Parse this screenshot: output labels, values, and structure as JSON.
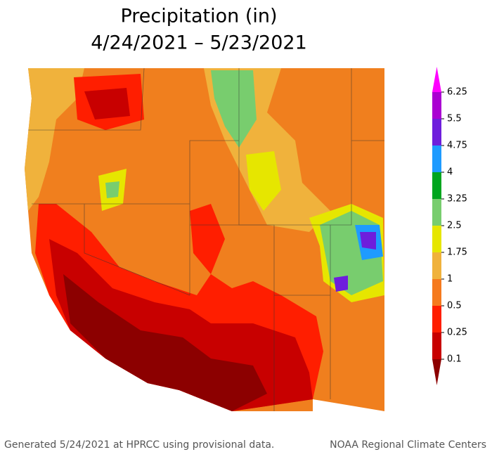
{
  "title": "Precipitation (in)",
  "subtitle": "4/24/2021 – 5/23/2021",
  "legend": {
    "levels": [
      0.1,
      0.25,
      0.5,
      1,
      1.75,
      2.5,
      3.25,
      4,
      4.75,
      5.5,
      6.25
    ],
    "colors": [
      "#8c0000",
      "#c80000",
      "#ff1e00",
      "#f57a1e",
      "#f0b23c",
      "#e6e600",
      "#78cd6e",
      "#00a51e",
      "#1e9bff",
      "#6e1edc",
      "#aa00d2",
      "#ff00ff"
    ]
  },
  "footer": {
    "left": "Generated 5/24/2021 at HPRCC using provisional data.",
    "right": "NOAA Regional Climate Centers"
  }
}
